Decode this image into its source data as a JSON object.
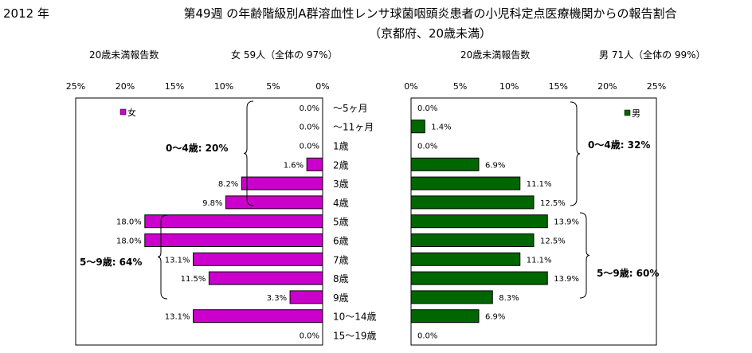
{
  "header": {
    "year": "2012 年",
    "title_line1": "第49週 の年齢階級別A群溶血性レンサ球菌咽頭炎患者の小児科定点医療機関からの報告割合",
    "title_line2": "（京都府、20歳未満）"
  },
  "female": {
    "caption": "20歳未満報告数",
    "summary": "女 59人（全体の 97%）",
    "legend": "女",
    "color": "#CC00CC",
    "group_labels": [
      "0～4歳: 20%",
      "5～9歳: 64%"
    ]
  },
  "male": {
    "caption": "20歳未満報告数",
    "summary": "男 71人（全体の 99%）",
    "legend": "男",
    "color": "#006600",
    "group_labels": [
      "0～4歳: 32%",
      "5～9歳: 60%"
    ]
  },
  "chart_data": [
    {
      "type": "bar",
      "orientation": "horizontal",
      "direction": "right-to-left",
      "series": [
        {
          "name": "女",
          "values": [
            0.0,
            0.0,
            0.0,
            1.6,
            8.2,
            9.8,
            18.0,
            18.0,
            13.1,
            11.5,
            3.3,
            13.1,
            0.0
          ]
        }
      ],
      "categories": [
        "～5ヶ月",
        "～11ヶ月",
        "1歳",
        "2歳",
        "3歳",
        "4歳",
        "5歳",
        "6歳",
        "7歳",
        "8歳",
        "9歳",
        "10～14歳",
        "15～19歳"
      ],
      "value_labels": [
        "0.0%",
        "0.0%",
        "0.0%",
        "1.6%",
        "8.2%",
        "9.8%",
        "18.0%",
        "18.0%",
        "13.1%",
        "11.5%",
        "3.3%",
        "13.1%",
        "0.0%"
      ],
      "xlim": [
        0,
        25
      ],
      "ticks": [
        "25%",
        "20%",
        "15%",
        "10%",
        "5%",
        "0%"
      ],
      "legend_position": "top-left"
    },
    {
      "type": "bar",
      "orientation": "horizontal",
      "series": [
        {
          "name": "男",
          "values": [
            0.0,
            1.4,
            0.0,
            6.9,
            11.1,
            12.5,
            13.9,
            12.5,
            11.1,
            13.9,
            8.3,
            6.9,
            0.0
          ]
        }
      ],
      "categories": [
        "～5ヶ月",
        "～11ヶ月",
        "1歳",
        "2歳",
        "3歳",
        "4歳",
        "5歳",
        "6歳",
        "7歳",
        "8歳",
        "9歳",
        "10～14歳",
        "15～19歳"
      ],
      "value_labels": [
        "0.0%",
        "1.4%",
        "0.0%",
        "6.9%",
        "11.1%",
        "12.5%",
        "13.9%",
        "12.5%",
        "11.1%",
        "13.9%",
        "8.3%",
        "6.9%",
        "0.0%"
      ],
      "xlim": [
        0,
        25
      ],
      "ticks": [
        "0%",
        "5%",
        "10%",
        "15%",
        "20%",
        "25%"
      ],
      "legend_position": "top-right"
    }
  ]
}
